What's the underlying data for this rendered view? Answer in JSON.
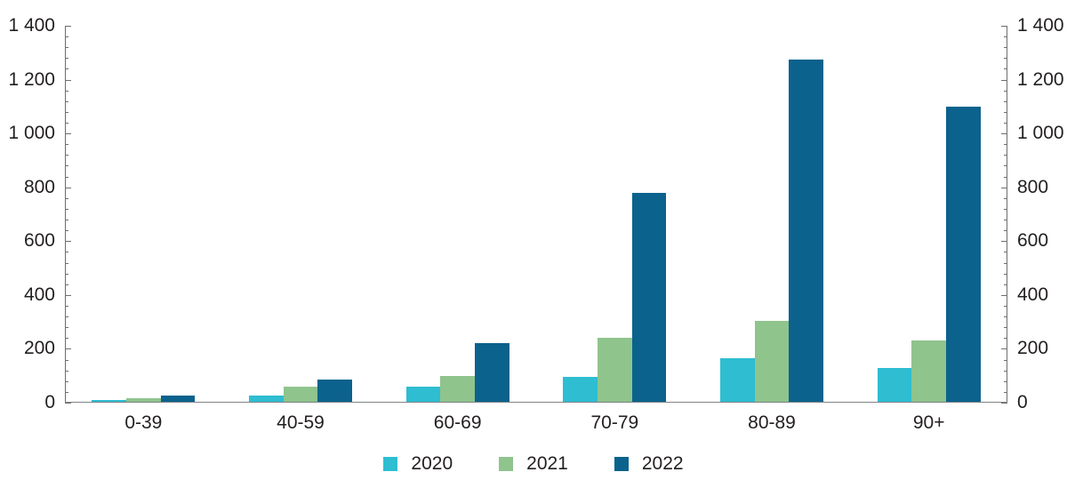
{
  "chart_data": {
    "type": "bar",
    "title": "",
    "xlabel": "",
    "ylabel": "",
    "categories": [
      "0-39",
      "40-59",
      "60-69",
      "70-79",
      "80-89",
      "90+"
    ],
    "series": [
      {
        "name": "2020",
        "color": "#2EBDD1",
        "values": [
          10,
          25,
          60,
          95,
          165,
          130
        ]
      },
      {
        "name": "2021",
        "color": "#8FC48D",
        "values": [
          18,
          58,
          100,
          240,
          305,
          230
        ]
      },
      {
        "name": "2022",
        "color": "#0B628C",
        "values": [
          28,
          85,
          220,
          780,
          1275,
          1100
        ]
      }
    ],
    "ylim": [
      0,
      1400
    ],
    "y_major_step": 200,
    "y_minor_step": 40,
    "y_tick_labels": [
      "0",
      "200",
      "400",
      "600",
      "800",
      "1 000",
      "1 200",
      "1 400"
    ],
    "dual_y_axis": true,
    "grid": false,
    "legend_position": "bottom",
    "colors": {
      "axis": "#6d6e71",
      "baseline": "#808285",
      "text": "#231f20",
      "background": "#ffffff"
    }
  }
}
